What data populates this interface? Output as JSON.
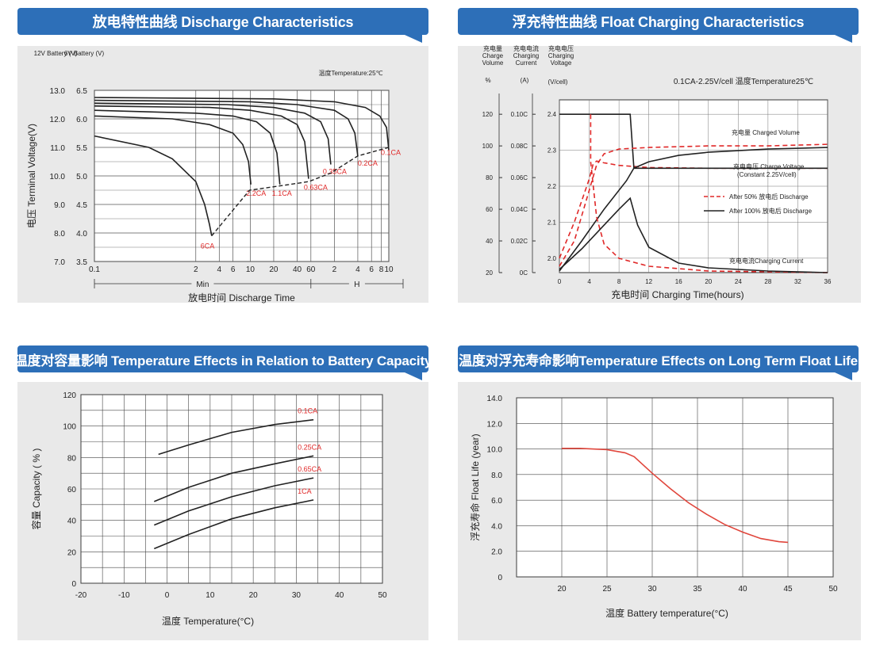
{
  "charts": [
    {
      "header": "放电特性曲线 Discharge Characteristics",
      "chart_data": {
        "type": "line",
        "title": "放电特性曲线 Discharge Characteristics",
        "temperature_note": "温度Temperature:25℃",
        "x_scale": "log",
        "xlabel": "放电时间 Discharge Time",
        "x_ticks": [
          "0.1",
          "2",
          "4",
          "6",
          "10",
          "20",
          "40",
          "60",
          "2",
          "4",
          "6",
          "8",
          "10"
        ],
        "x_unit_groups": [
          "Min",
          "H"
        ],
        "ylabel": "电压 Terminal Voltage(V)",
        "y_axis_headers": [
          "12V Battery (V)",
          "6V Battery (V)"
        ],
        "y_ticks_12v": [
          "13.0",
          "12.0",
          "11.0",
          "10.0",
          "9.0",
          "8.0",
          "7.0"
        ],
        "y_ticks_6v": [
          "6.5",
          "6.0",
          "5.5",
          "5.0",
          "4.5",
          "4.0",
          "3.5"
        ],
        "ylim_12v": [
          7.0,
          13.0
        ],
        "series": [
          {
            "name": "6CA",
            "x_min": [
              0.1,
              0.5,
              1,
              2,
              2.6,
              3.0,
              3.2
            ],
            "y": [
              11.4,
              11.0,
              10.6,
              9.8,
              9.0,
              8.3,
              7.9
            ]
          },
          {
            "name": "2.2CA",
            "x_min": [
              0.1,
              1,
              3,
              6,
              8,
              9.5,
              10.2
            ],
            "y": [
              12.1,
              12.0,
              11.8,
              11.5,
              11.1,
              10.5,
              9.7
            ]
          },
          {
            "name": "1.1CA",
            "x_min": [
              0.1,
              2,
              6,
              12,
              18,
              22,
              24
            ],
            "y": [
              12.3,
              12.2,
              12.1,
              11.9,
              11.5,
              10.8,
              9.7
            ]
          },
          {
            "name": "0.63CA",
            "x_min": [
              0.1,
              3,
              10,
              25,
              40,
              50,
              56
            ],
            "y": [
              12.45,
              12.4,
              12.3,
              12.1,
              11.8,
              11.2,
              9.9
            ]
          },
          {
            "name": "0.35CA",
            "x_min": [
              0.1,
              5,
              20,
              50,
              80,
              100,
              108
            ],
            "y": [
              12.55,
              12.5,
              12.4,
              12.2,
              11.9,
              11.3,
              10.4
            ]
          },
          {
            "name": "0.2CA",
            "x_min": [
              0.1,
              10,
              40,
              120,
              180,
              220,
              240
            ],
            "y": [
              12.65,
              12.6,
              12.5,
              12.3,
              12.0,
              11.5,
              10.7
            ]
          },
          {
            "name": "0.1CA",
            "x_min": [
              0.1,
              20,
              120,
              300,
              460,
              560,
              600
            ],
            "y": [
              12.75,
              12.7,
              12.6,
              12.4,
              12.1,
              11.7,
              10.9
            ]
          }
        ],
        "cutoff_voltage": {
          "x_min": [
            3.2,
            9.8,
            24,
            56,
            108,
            240,
            600
          ],
          "y": [
            7.9,
            9.5,
            9.65,
            9.8,
            10.1,
            10.7,
            11.0
          ]
        }
      }
    },
    {
      "header": "浮充特性曲线 Float Charging Characteristics",
      "chart_data": {
        "type": "line",
        "title": "浮充特性曲线 Float Charging Characteristics",
        "condition_note": "0.1CA-2.25V/cell   温度Temperature25℃",
        "xlabel": "充电时间 Charging Time(hours)",
        "x_ticks": [
          0,
          4,
          8,
          12,
          16,
          20,
          24,
          28,
          32,
          36
        ],
        "xlim": [
          0,
          36
        ],
        "axis_headers": {
          "volume": "充电量 Charge Volume",
          "current": "充电电流 Charging Current",
          "voltage": "充电电压 Charging Voltage",
          "volume_unit": "%",
          "current_unit": "(A)",
          "voltage_unit": "(V/cell)"
        },
        "volume_ticks": [
          "120",
          "100",
          "80",
          "60",
          "40",
          "20"
        ],
        "current_ticks": [
          "0.10C",
          "0.08C",
          "0.06C",
          "0.04C",
          "0.02C",
          "0C"
        ],
        "voltage_ticks": [
          "2.4",
          "2.3",
          "2.2",
          "2.1",
          "2.0"
        ],
        "voltage_ylim": [
          1.96,
          2.44
        ],
        "annotations": [
          "充电量 Charged Volume",
          "充电电压 Charge Voltage",
          "(Constant 2.25V/cell)",
          "充电电流Charging Current"
        ],
        "legend": [
          "After 50%  放电后 Discharge",
          "After 100%  放电后 Discharge"
        ],
        "legend_placement": "right",
        "series_voltage_v": [
          {
            "name": "After 50%  放电后 Discharge",
            "style": "dashed",
            "x": [
              0,
              1,
              2,
              3,
              4,
              4.5,
              5,
              6,
              8,
              12,
              20,
              36
            ],
            "y": [
              2.0,
              2.05,
              2.1,
              2.16,
              2.22,
              2.26,
              2.27,
              2.265,
              2.258,
              2.252,
              2.25,
              2.25
            ]
          },
          {
            "name": "After 100%  放电后 Discharge",
            "style": "solid",
            "x": [
              0,
              9,
              9.5,
              10,
              36
            ],
            "y": [
              2.4,
              2.4,
              2.4,
              2.25,
              2.25
            ]
          }
        ],
        "series_volume_pct": [
          {
            "name": "After 50%  放电后 Discharge",
            "style": "dashed",
            "x": [
              0,
              2,
              4,
              5,
              6,
              8,
              12,
              20,
              28,
              36
            ],
            "y": [
              24,
              40,
              72,
              88,
              95,
              98,
              99,
              100,
              100,
              101
            ]
          },
          {
            "name": "After 100%  放电后 Discharge",
            "style": "solid",
            "x": [
              0,
              3,
              6,
              9,
              10,
              12,
              16,
              20,
              28,
              36
            ],
            "y": [
              21,
              40,
              60,
              78,
              86,
              90,
              94,
              96,
              98,
              99
            ]
          }
        ],
        "series_current_c": [
          {
            "name": "After 50%  放电后 Discharge",
            "style": "dashed",
            "x": [
              4.2,
              4.2,
              5,
              6,
              8,
              12,
              20,
              36
            ],
            "y": [
              0.1,
              0.07,
              0.035,
              0.018,
              0.009,
              0.004,
              0.001,
              0.0
            ]
          },
          {
            "name": "After 100%  放电后 Discharge",
            "style": "solid",
            "x": [
              0,
              3,
              6,
              8,
              9.5,
              10.5,
              12,
              16,
              20,
              28,
              36
            ],
            "y": [
              0.002,
              0.015,
              0.03,
              0.04,
              0.047,
              0.03,
              0.016,
              0.006,
              0.003,
              0.001,
              0.0
            ]
          }
        ]
      }
    },
    {
      "header": "温度对容量影响 Temperature Effects in Relation to Battery Capacity",
      "chart_data": {
        "type": "line",
        "title": "温度对容量影响 Temperature Effects in Relation to Battery Capacity",
        "xlabel": "温度  Temperature(°C)",
        "ylabel": "容量 Capacity ( % )",
        "xlim": [
          -20,
          50
        ],
        "ylim": [
          0,
          120
        ],
        "x_ticks": [
          -20,
          -10,
          0,
          10,
          20,
          30,
          40,
          50
        ],
        "y_ticks": [
          0,
          20,
          40,
          60,
          80,
          100,
          120
        ],
        "grid": true,
        "series": [
          {
            "name": "0.1CA",
            "x": [
              -2,
              5,
              15,
              25,
              34
            ],
            "y": [
              82,
              88,
              96,
              101,
              104
            ]
          },
          {
            "name": "0.25CA",
            "x": [
              -3,
              5,
              15,
              25,
              34
            ],
            "y": [
              52,
              61,
              70,
              76,
              81
            ]
          },
          {
            "name": "0.65CA",
            "x": [
              -3,
              5,
              15,
              25,
              34
            ],
            "y": [
              37,
              46,
              55,
              62,
              67
            ]
          },
          {
            "name": "1CA",
            "x": [
              -3,
              5,
              15,
              25,
              34
            ],
            "y": [
              22,
              31,
              41,
              48,
              53
            ]
          }
        ]
      }
    },
    {
      "header": "温度对浮充寿命影响Temperature Effects on Long Term Float Life",
      "chart_data": {
        "type": "line",
        "title": "温度对浮充寿命影响Temperature Effects on Long Term Float Life",
        "xlabel": "温度  Battery temperature(°C)",
        "ylabel": "浮充寿命  Float Life (year)",
        "xlim": [
          15,
          50
        ],
        "ylim": [
          0,
          14
        ],
        "x_ticks": [
          20,
          25,
          30,
          35,
          40,
          45,
          50
        ],
        "y_ticks": [
          "0",
          "2.0",
          "4.0",
          "6.0",
          "8.0",
          "10.0",
          "12.0",
          "14.0"
        ],
        "grid": true,
        "series": [
          {
            "name": "",
            "color": "#e0463c",
            "x": [
              20,
              22,
              25,
              27,
              28,
              30,
              32,
              34,
              36,
              38,
              40,
              42,
              44,
              45
            ],
            "y": [
              10.05,
              10.05,
              9.95,
              9.7,
              9.4,
              8.1,
              6.9,
              5.8,
              4.9,
              4.1,
              3.5,
              3.0,
              2.75,
              2.7
            ]
          }
        ]
      }
    }
  ]
}
